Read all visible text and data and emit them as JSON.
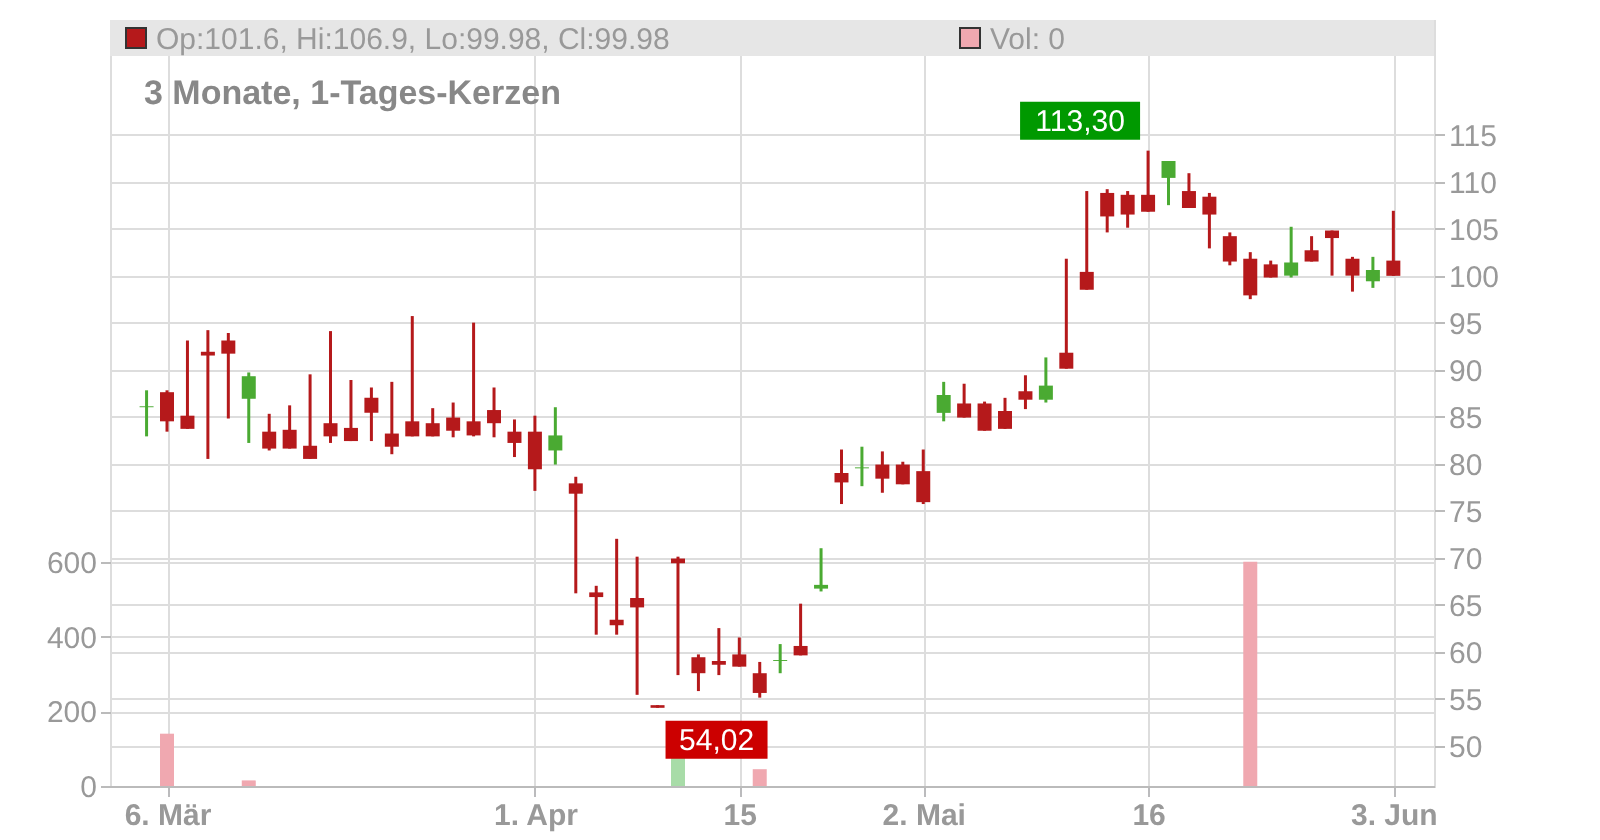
{
  "chart_data": {
    "type": "candlestick",
    "title": "3 Monate, 1-Tages-Kerzen",
    "legend": "top",
    "grid": true,
    "categories": [
      null,
      "6. Mär",
      null,
      null,
      null,
      null,
      null,
      null,
      null,
      null,
      null,
      null,
      null,
      null,
      null,
      null,
      null,
      null,
      null,
      "1. Apr",
      null,
      null,
      null,
      null,
      null,
      null,
      null,
      null,
      null,
      "15",
      null,
      null,
      null,
      null,
      null,
      null,
      null,
      null,
      "2. Mai",
      null,
      null,
      null,
      null,
      null,
      null,
      null,
      null,
      null,
      null,
      "16",
      null,
      null,
      null,
      null,
      null,
      null,
      null,
      null,
      null,
      null,
      null,
      "3. Jun"
    ],
    "ylim": [
      0,
      2050
    ],
    "yticks": [
      0,
      200,
      400,
      600
    ],
    "y2lim": [
      45.7,
      127.2
    ],
    "y2ticks": [
      50,
      55,
      60,
      65,
      70,
      75,
      80,
      85,
      90,
      95,
      100,
      105,
      110,
      115
    ],
    "annotations": [
      "113,30",
      "54,02"
    ],
    "series": [
      {
        "type": "bar",
        "name": "Vol: 0",
        "color": "#f0a8b0",
        "values": [
          null,
          140,
          null,
          null,
          null,
          15,
          null,
          null,
          null,
          null,
          null,
          null,
          null,
          null,
          null,
          null,
          null,
          null,
          null,
          null,
          null,
          null,
          null,
          null,
          null,
          null,
          80,
          null,
          null,
          null,
          45,
          null,
          null,
          null,
          null,
          null,
          null,
          null,
          null,
          null,
          null,
          null,
          null,
          null,
          null,
          null,
          null,
          null,
          null,
          null,
          null,
          null,
          null,
          null,
          600,
          null,
          null,
          null,
          null,
          null,
          null,
          null
        ],
        "colors": [
          null,
          "#f0a8b0",
          null,
          null,
          null,
          "#f0a8b0",
          null,
          null,
          null,
          null,
          null,
          null,
          null,
          null,
          null,
          null,
          null,
          null,
          null,
          null,
          null,
          null,
          null,
          null,
          null,
          null,
          "#a8dca8",
          null,
          null,
          null,
          "#f0a8b0",
          null,
          null,
          null,
          null,
          null,
          null,
          null,
          null,
          null,
          null,
          null,
          null,
          null,
          null,
          null,
          null,
          null,
          null,
          null,
          null,
          null,
          null,
          null,
          "#f0a8b0",
          null,
          null,
          null,
          null,
          null,
          null,
          null
        ]
      },
      {
        "axis": "y2",
        "name": "Op:101.6, Hi:106.9, Lo:99.98, Cl:99.98",
        "color": "#b5191b",
        "ohlc": [
          [
            86.0,
            87.8,
            82.9,
            86.1
          ],
          [
            87.6,
            87.8,
            83.4,
            84.5
          ],
          [
            85.1,
            93.1,
            83.7,
            83.7
          ],
          [
            91.9,
            94.2,
            80.5,
            91.5
          ],
          [
            93.1,
            93.9,
            84.8,
            91.7
          ],
          [
            86.9,
            89.7,
            82.2,
            89.3
          ],
          [
            83.4,
            85.3,
            81.4,
            81.6
          ],
          [
            83.6,
            86.2,
            81.6,
            81.6
          ],
          [
            81.9,
            89.5,
            80.5,
            80.5
          ],
          [
            84.3,
            94.1,
            82.2,
            82.9
          ],
          [
            83.8,
            88.9,
            82.4,
            82.4
          ],
          [
            87.0,
            88.1,
            82.4,
            85.4
          ],
          [
            83.2,
            88.7,
            81.0,
            81.8
          ],
          [
            84.5,
            95.7,
            82.9,
            82.9
          ],
          [
            84.3,
            85.9,
            82.9,
            82.9
          ],
          [
            84.9,
            86.5,
            82.8,
            83.5
          ],
          [
            84.5,
            95.0,
            82.9,
            83.0
          ],
          [
            85.7,
            88.1,
            82.8,
            84.3
          ],
          [
            83.4,
            84.7,
            80.7,
            82.2
          ],
          [
            83.4,
            85.1,
            77.1,
            79.4
          ],
          [
            81.4,
            86.0,
            79.9,
            83.0
          ],
          [
            77.9,
            78.6,
            66.2,
            76.8
          ],
          [
            66.3,
            67.0,
            61.8,
            65.8
          ],
          [
            63.4,
            72.0,
            61.8,
            62.8
          ],
          [
            65.7,
            70.1,
            55.4,
            64.7
          ],
          [
            54.3,
            54.3,
            54.02,
            54.02
          ],
          [
            69.9,
            70.1,
            57.5,
            69.4
          ],
          [
            59.4,
            59.7,
            55.8,
            57.7
          ],
          [
            59.0,
            62.5,
            57.5,
            58.6
          ],
          [
            59.7,
            61.5,
            58.4,
            58.4
          ],
          [
            57.7,
            58.9,
            55.1,
            55.6
          ],
          [
            59.0,
            60.8,
            57.7,
            59.1
          ],
          [
            60.6,
            65.1,
            59.6,
            59.6
          ],
          [
            66.7,
            71.0,
            66.4,
            67.1
          ],
          [
            79.0,
            81.5,
            75.7,
            78.0
          ],
          [
            79.5,
            81.8,
            77.6,
            79.6
          ],
          [
            79.9,
            81.3,
            76.9,
            78.4
          ],
          [
            79.9,
            80.2,
            77.8,
            77.8
          ],
          [
            79.2,
            81.5,
            75.7,
            75.9
          ],
          [
            85.4,
            88.7,
            84.5,
            87.3
          ],
          [
            86.4,
            88.5,
            84.9,
            84.9
          ],
          [
            86.4,
            86.6,
            83.5,
            83.5
          ],
          [
            85.6,
            87.0,
            83.7,
            83.7
          ],
          [
            87.7,
            89.4,
            85.8,
            86.8
          ],
          [
            86.8,
            91.3,
            86.5,
            88.3
          ],
          [
            91.8,
            101.8,
            90.1,
            90.1
          ],
          [
            100.4,
            109.0,
            98.5,
            98.5
          ],
          [
            108.8,
            109.2,
            104.6,
            106.3
          ],
          [
            108.6,
            109.0,
            105.1,
            106.5
          ],
          [
            108.6,
            113.3,
            106.8,
            106.8
          ],
          [
            110.4,
            112.2,
            107.5,
            112.2
          ],
          [
            109.0,
            110.9,
            107.2,
            107.2
          ],
          [
            108.4,
            108.8,
            102.9,
            106.5
          ],
          [
            104.2,
            104.6,
            101.1,
            101.5
          ],
          [
            101.8,
            102.5,
            97.5,
            97.9
          ],
          [
            101.2,
            101.6,
            99.8,
            99.8
          ],
          [
            100.0,
            105.2,
            99.8,
            101.4
          ],
          [
            102.7,
            104.2,
            101.5,
            101.5
          ],
          [
            104.8,
            104.8,
            100.0,
            104.0
          ],
          [
            101.8,
            102.0,
            98.3,
            100.0
          ],
          [
            99.4,
            102.0,
            98.7,
            100.6
          ],
          [
            101.6,
            106.9,
            99.98,
            99.98
          ]
        ],
        "colors": [
          "#4aaa32",
          "#b5191b",
          "#b5191b",
          "#b5191b",
          "#b5191b",
          "#4aaa32",
          "#b5191b",
          "#b5191b",
          "#b5191b",
          "#b5191b",
          "#b5191b",
          "#b5191b",
          "#b5191b",
          "#b5191b",
          "#b5191b",
          "#b5191b",
          "#b5191b",
          "#b5191b",
          "#b5191b",
          "#b5191b",
          "#4aaa32",
          "#b5191b",
          "#b5191b",
          "#b5191b",
          "#b5191b",
          "#b5191b",
          "#b5191b",
          "#b5191b",
          "#b5191b",
          "#b5191b",
          "#b5191b",
          "#4aaa32",
          "#b5191b",
          "#4aaa32",
          "#b5191b",
          "#4aaa32",
          "#b5191b",
          "#b5191b",
          "#b5191b",
          "#4aaa32",
          "#b5191b",
          "#b5191b",
          "#b5191b",
          "#b5191b",
          "#4aaa32",
          "#b5191b",
          "#b5191b",
          "#b5191b",
          "#b5191b",
          "#b5191b",
          "#4aaa32",
          "#b5191b",
          "#b5191b",
          "#b5191b",
          "#b5191b",
          "#b5191b",
          "#4aaa32",
          "#b5191b",
          "#b5191b",
          "#b5191b",
          "#4aaa32",
          "#b5191b"
        ]
      }
    ]
  }
}
